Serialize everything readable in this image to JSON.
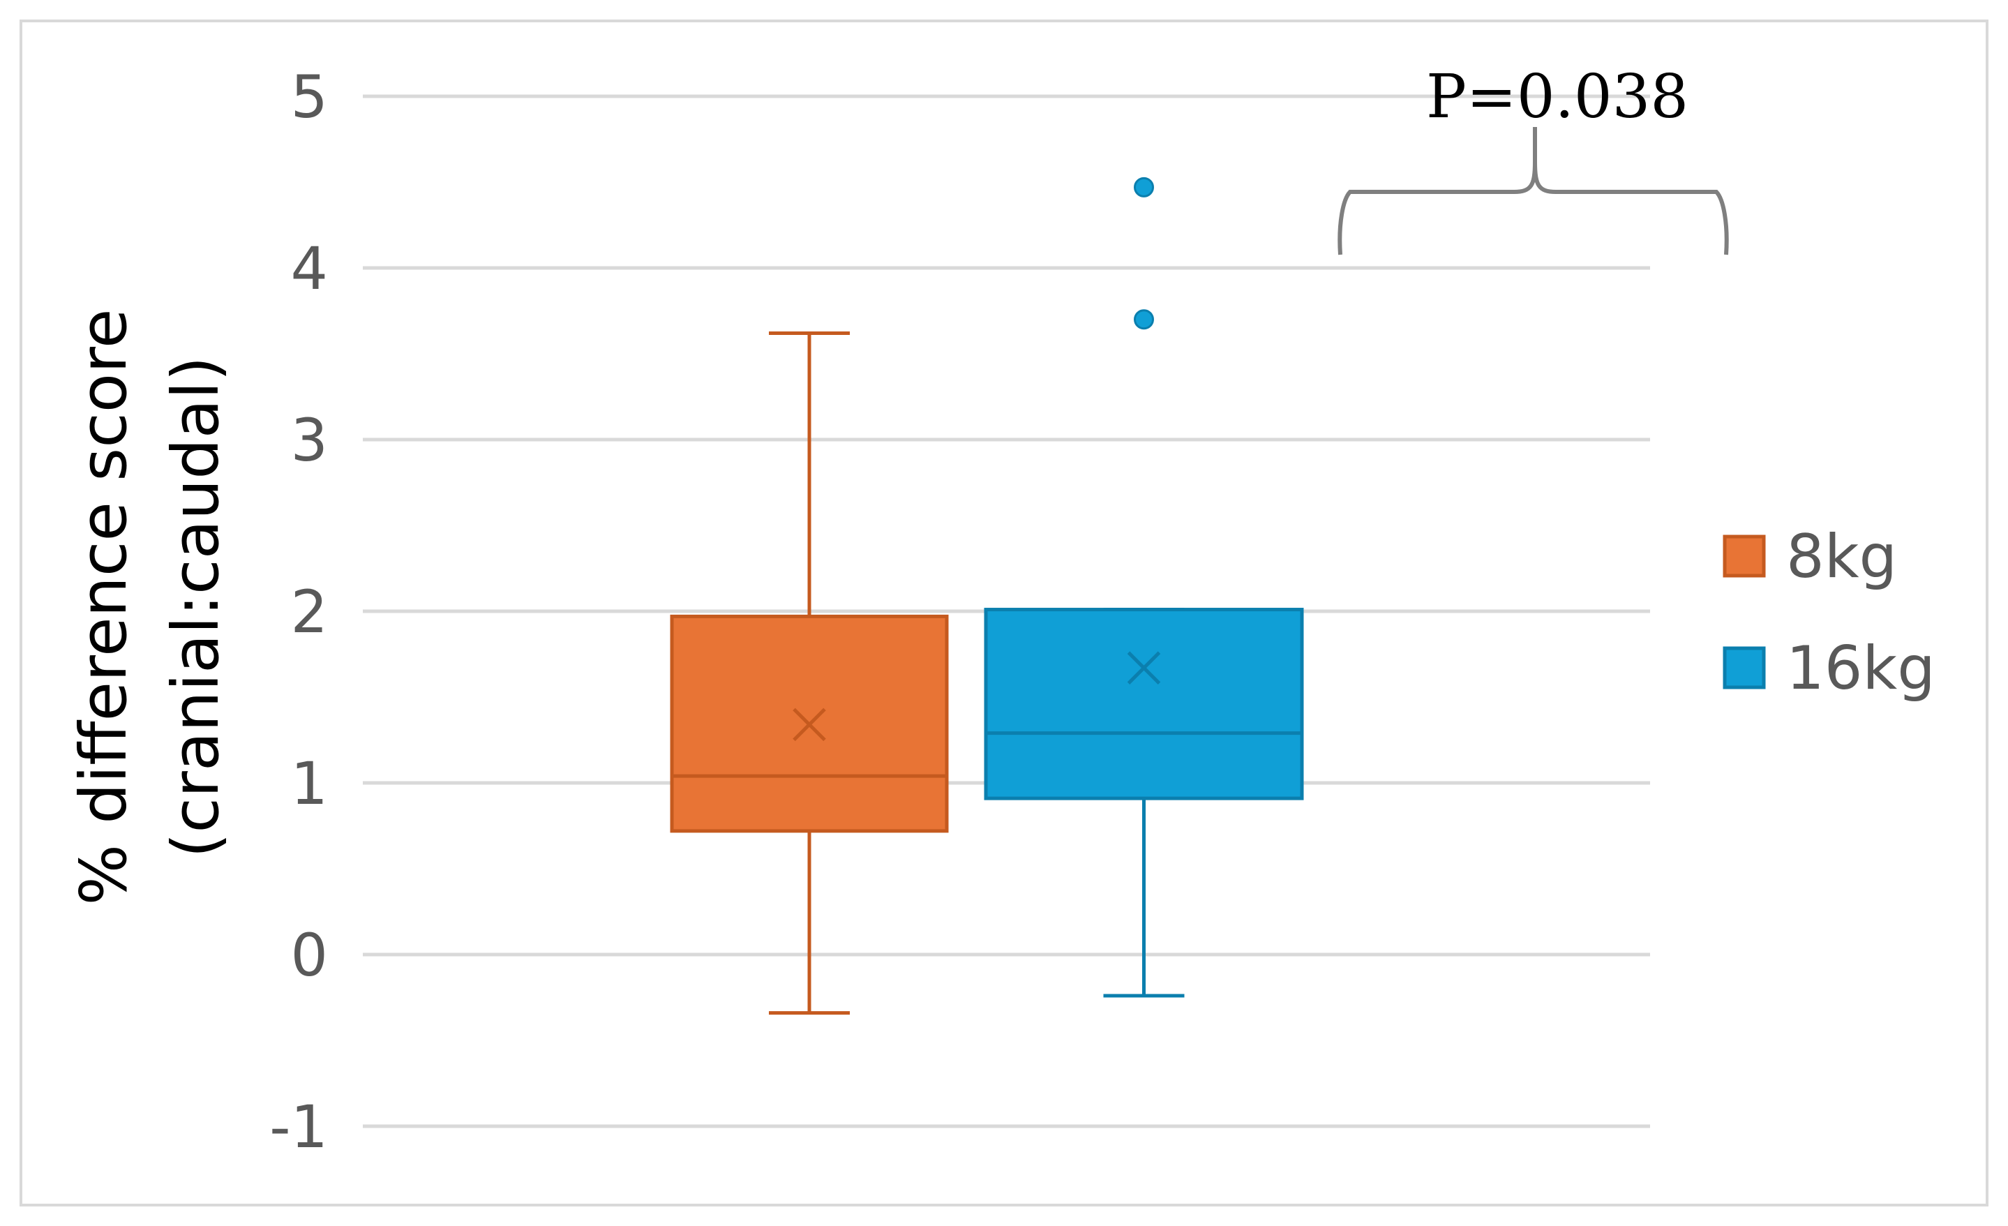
{
  "chart_data": {
    "type": "box",
    "title": "",
    "ylabel_line1": "% difference score",
    "ylabel_line2": "(cranial:caudal)",
    "ylim": [
      -1,
      5
    ],
    "yticks": [
      -1,
      0,
      1,
      2,
      3,
      4,
      5
    ],
    "grid": true,
    "legend_position": "right",
    "series": [
      {
        "name": "8kg",
        "color": "#E87435",
        "stroke": "#C55A1F",
        "min": -0.34,
        "q1": 0.72,
        "median": 1.04,
        "mean": 1.34,
        "q3": 1.97,
        "max": 3.62,
        "outliers": []
      },
      {
        "name": "16kg",
        "color": "#109FD6",
        "stroke": "#0B7FAE",
        "min": -0.24,
        "q1": 0.91,
        "median": 1.29,
        "mean": 1.67,
        "q3": 2.01,
        "max": 2.01,
        "outliers": [
          3.7,
          4.47
        ]
      }
    ],
    "annotation": {
      "text": "P=0.038"
    }
  }
}
